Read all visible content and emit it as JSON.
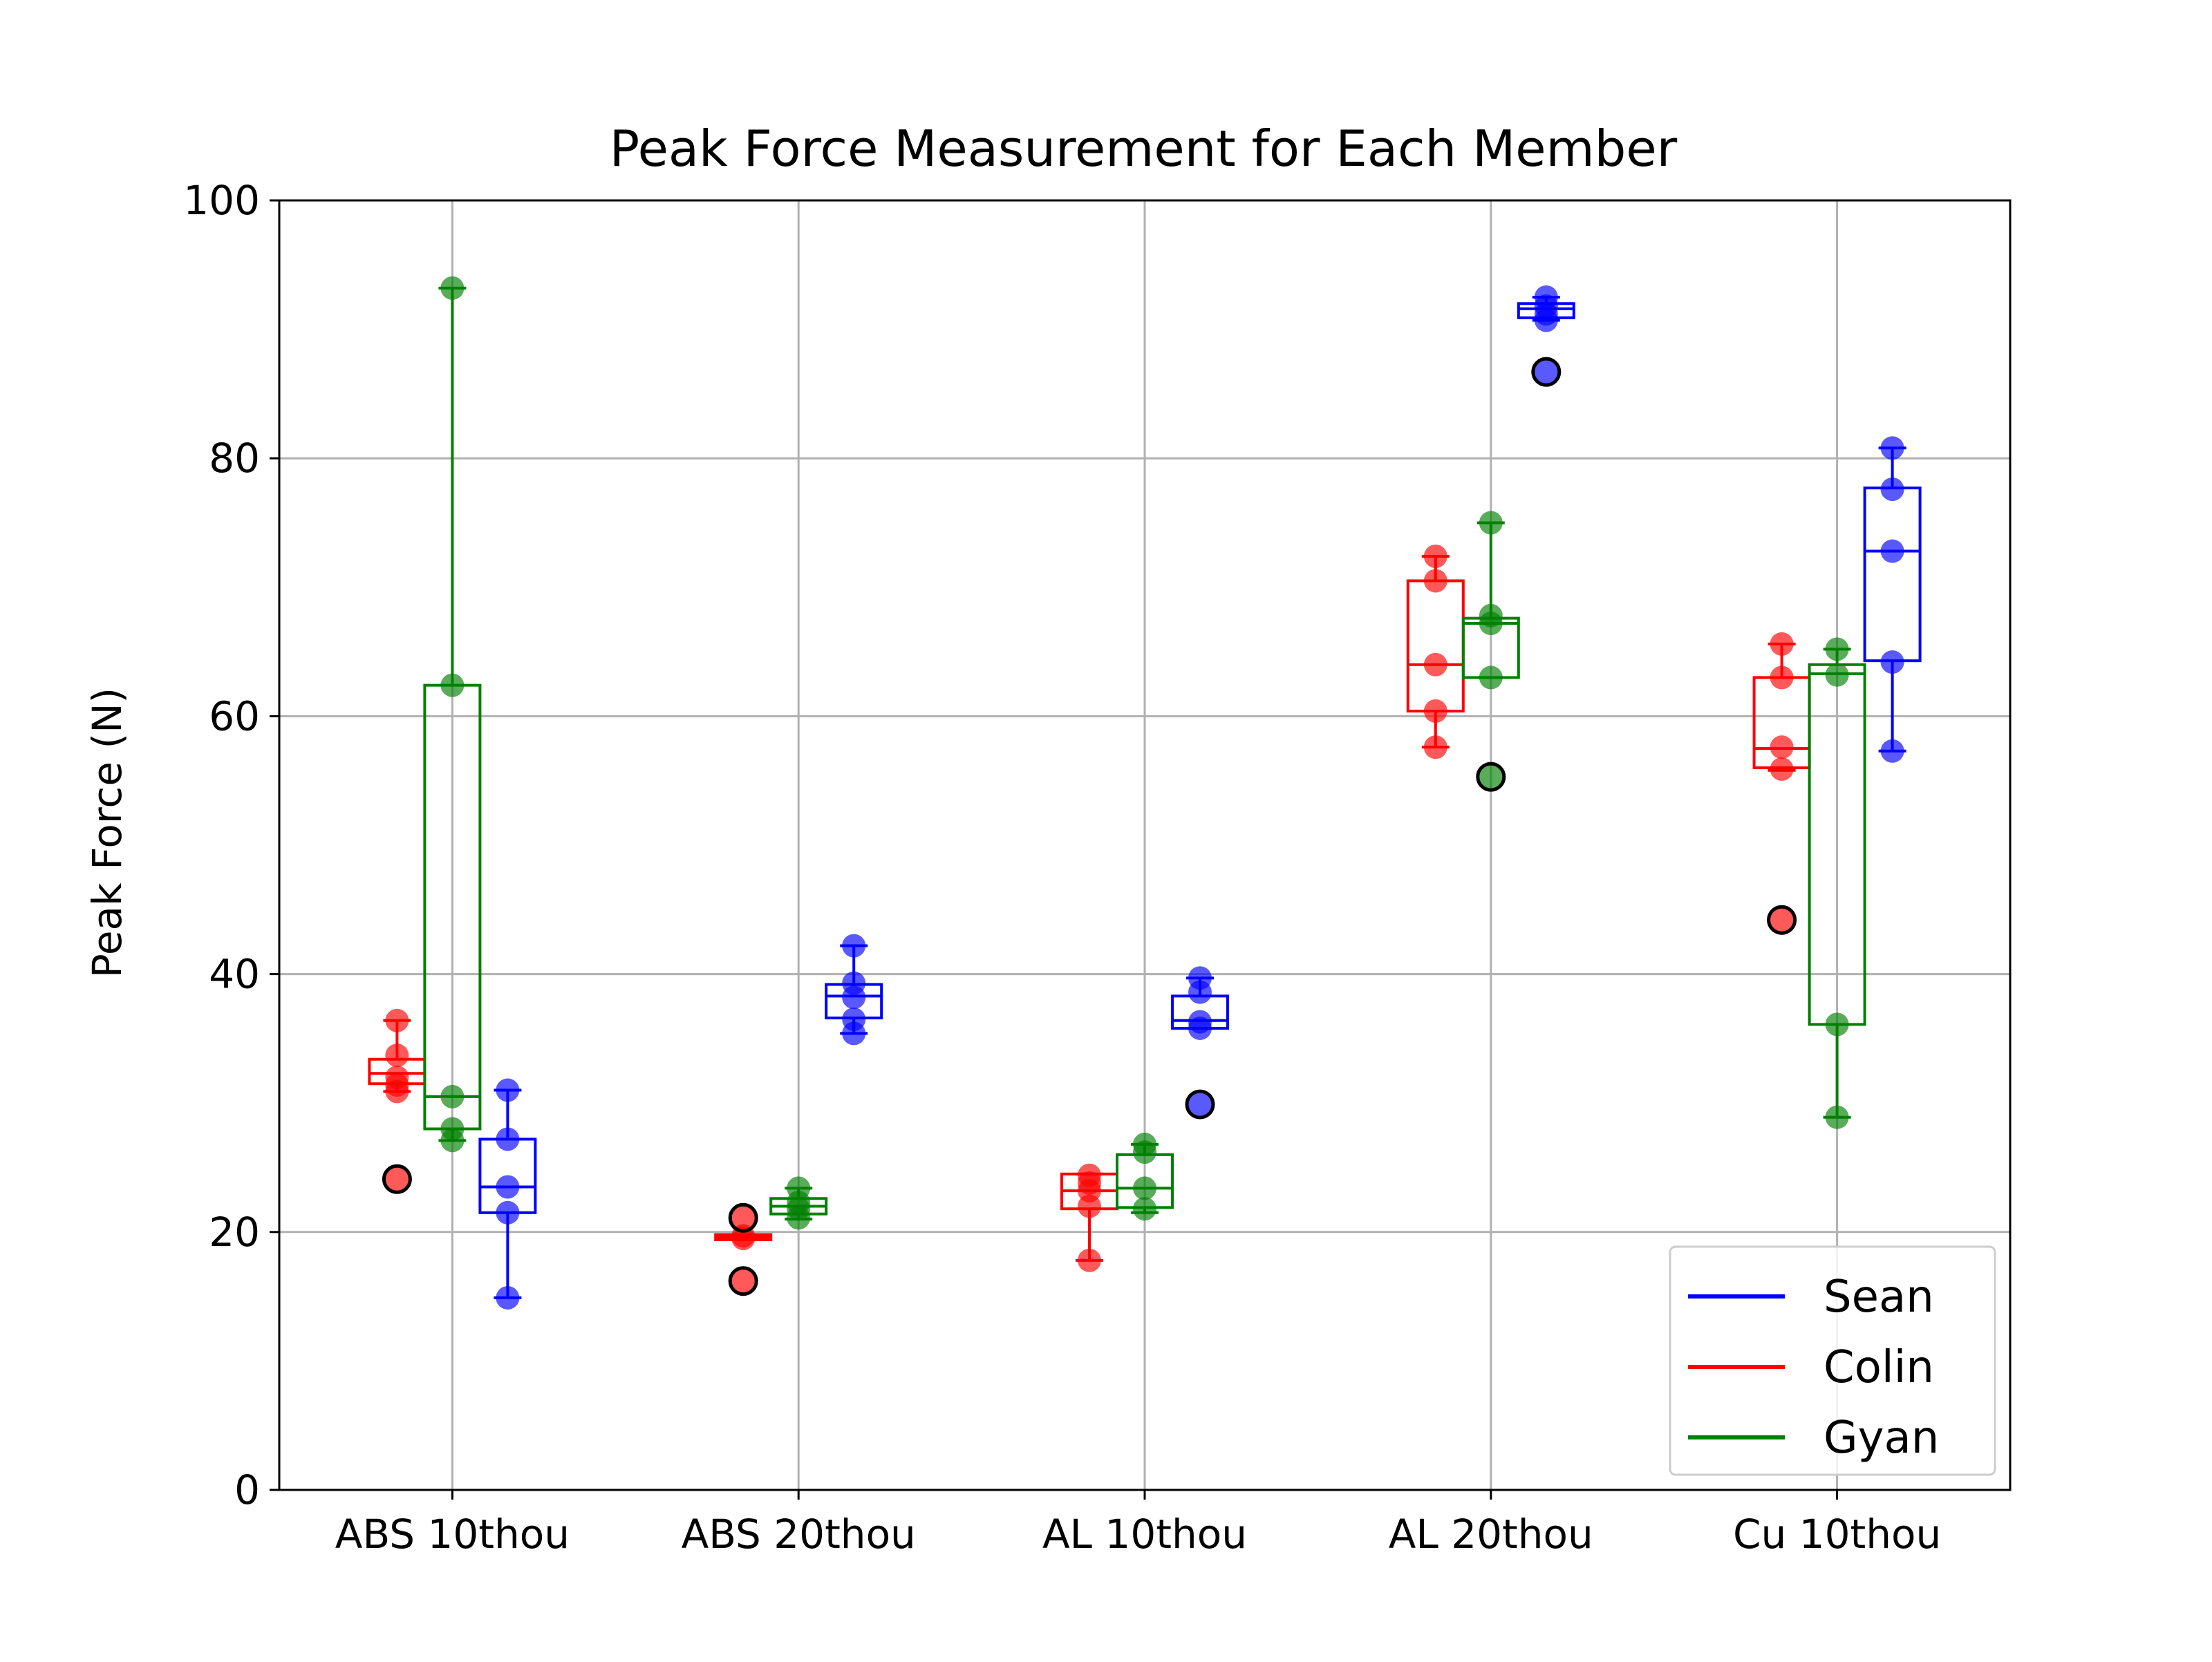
{
  "chart_data": {
    "type": "boxplot",
    "title": "Peak Force Measurement for Each Member",
    "xlabel": "",
    "ylabel": "Peak Force (N)",
    "ylim": [
      0,
      100
    ],
    "yticks": [
      0,
      20,
      40,
      60,
      80,
      100
    ],
    "grid": true,
    "legend_placement": "lower-right",
    "categories": [
      "ABS 10thou",
      "ABS 20thou",
      "AL 10thou",
      "AL 20thou",
      "Cu 10thou"
    ],
    "series": [
      {
        "name": "Colin",
        "color": "#ff0000",
        "boxes": [
          {
            "q1": 31.5,
            "median": 32.3,
            "q3": 33.4,
            "whisker_low": 30.9,
            "whisker_high": 36.4,
            "points": [
              36.4,
              33.7,
              32.0,
              30.9,
              31.4
            ],
            "outliers": [
              24.1
            ]
          },
          {
            "q1": 19.4,
            "median": 19.6,
            "q3": 19.8,
            "whisker_low": 19.4,
            "whisker_high": 19.8,
            "points": [
              19.5,
              19.7
            ],
            "outliers": [
              21.1,
              16.2
            ]
          },
          {
            "q1": 21.8,
            "median": 23.2,
            "q3": 24.5,
            "whisker_low": 17.8,
            "whisker_high": 24.5,
            "points": [
              24.4,
              23.8,
              22.0,
              17.8,
              23.2
            ],
            "outliers": []
          },
          {
            "q1": 60.4,
            "median": 64.0,
            "q3": 70.5,
            "whisker_low": 57.6,
            "whisker_high": 72.4,
            "points": [
              72.4,
              70.5,
              64.0,
              60.4,
              57.6
            ],
            "outliers": []
          },
          {
            "q1": 56.0,
            "median": 57.5,
            "q3": 63.0,
            "whisker_low": 55.8,
            "whisker_high": 65.6,
            "points": [
              65.6,
              63.0,
              57.6,
              55.9
            ],
            "outliers": [
              44.2
            ]
          }
        ]
      },
      {
        "name": "Gyan",
        "color": "#008000",
        "boxes": [
          {
            "q1": 28.0,
            "median": 30.5,
            "q3": 62.4,
            "whisker_low": 27.1,
            "whisker_high": 93.2,
            "points": [
              93.2,
              62.4,
              30.5,
              28.0,
              27.1
            ],
            "outliers": []
          },
          {
            "q1": 21.4,
            "median": 22.0,
            "q3": 22.6,
            "whisker_low": 21.0,
            "whisker_high": 23.4,
            "points": [
              23.4,
              22.3,
              21.8,
              21.1
            ],
            "outliers": []
          },
          {
            "q1": 21.9,
            "median": 23.4,
            "q3": 26.0,
            "whisker_low": 21.5,
            "whisker_high": 26.8,
            "points": [
              26.8,
              26.2,
              23.4,
              21.8
            ],
            "outliers": []
          },
          {
            "q1": 63.0,
            "median": 67.2,
            "q3": 67.6,
            "whisker_low": 63.0,
            "whisker_high": 75.0,
            "points": [
              75.0,
              67.8,
              67.2,
              63.0
            ],
            "outliers": [
              55.3
            ]
          },
          {
            "q1": 36.1,
            "median": 63.3,
            "q3": 64.0,
            "whisker_low": 28.9,
            "whisker_high": 65.2,
            "points": [
              65.2,
              63.2,
              36.1,
              28.9
            ],
            "outliers": []
          }
        ]
      },
      {
        "name": "Sean",
        "color": "#0000ff",
        "boxes": [
          {
            "q1": 21.5,
            "median": 23.5,
            "q3": 27.2,
            "whisker_low": 14.9,
            "whisker_high": 31.0,
            "points": [
              31.0,
              27.2,
              23.5,
              21.5,
              14.9
            ],
            "outliers": []
          },
          {
            "q1": 36.6,
            "median": 38.3,
            "q3": 39.2,
            "whisker_low": 35.4,
            "whisker_high": 42.2,
            "points": [
              42.2,
              39.3,
              38.2,
              36.5,
              35.4
            ],
            "outliers": []
          },
          {
            "q1": 35.8,
            "median": 36.4,
            "q3": 38.3,
            "whisker_low": 35.8,
            "whisker_high": 39.7,
            "points": [
              39.7,
              38.6,
              36.3,
              35.8
            ],
            "outliers": [
              29.9
            ]
          },
          {
            "q1": 90.9,
            "median": 91.6,
            "q3": 92.0,
            "whisker_low": 90.7,
            "whisker_high": 92.5,
            "points": [
              92.5,
              91.8,
              91.2,
              90.7
            ],
            "outliers": [
              86.7
            ]
          },
          {
            "q1": 64.3,
            "median": 72.8,
            "q3": 77.7,
            "whisker_low": 57.3,
            "whisker_high": 80.8,
            "points": [
              80.8,
              77.6,
              72.8,
              64.2,
              57.3
            ],
            "outliers": []
          }
        ]
      }
    ],
    "legend": [
      {
        "name": "Sean",
        "color": "#0000ff"
      },
      {
        "name": "Colin",
        "color": "#ff0000"
      },
      {
        "name": "Gyan",
        "color": "#008000"
      }
    ]
  }
}
